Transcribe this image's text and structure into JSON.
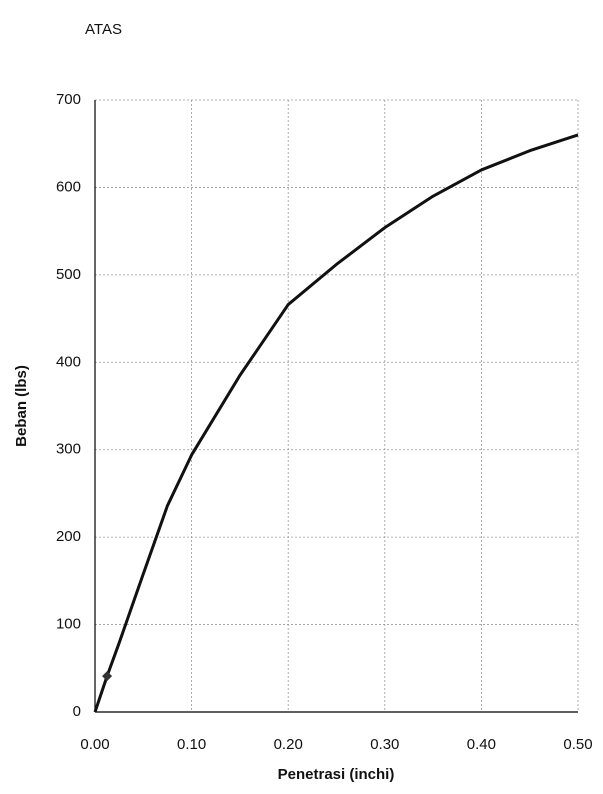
{
  "chart_data": {
    "type": "line",
    "title": "ATAS",
    "x_label": "Penetrasi (inchi)",
    "y_label": "Beban (lbs)",
    "x": [
      0,
      0.0125,
      0.025,
      0.05,
      0.075,
      0.1,
      0.15,
      0.2,
      0.25,
      0.3,
      0.35,
      0.4,
      0.45,
      0.5
    ],
    "series": [
      {
        "color": "#111111",
        "style": "line",
        "values": [
          0,
          41,
          79,
          158,
          236,
          294,
          385,
          466,
          512,
          554,
          590,
          620,
          642,
          660
        ]
      },
      {
        "color": "#333333",
        "style": "marker",
        "values": [
          null,
          41,
          null,
          null,
          null,
          null,
          null,
          null,
          null,
          null,
          null,
          null,
          null,
          null
        ]
      }
    ],
    "xlim": [
      0,
      0.5
    ],
    "xticks": [
      {
        "value": 0,
        "label": "0.00"
      },
      {
        "value": 0.1,
        "label": "0.10"
      },
      {
        "value": 0.2,
        "label": "0.20"
      },
      {
        "value": 0.3,
        "label": "0.30"
      },
      {
        "value": 0.4,
        "label": "0.40"
      },
      {
        "value": 0.5,
        "label": "0.50"
      }
    ],
    "ylim": [
      0,
      700
    ],
    "yticks": [
      0,
      100,
      200,
      300,
      400,
      500,
      600,
      700
    ],
    "grid": true
  }
}
